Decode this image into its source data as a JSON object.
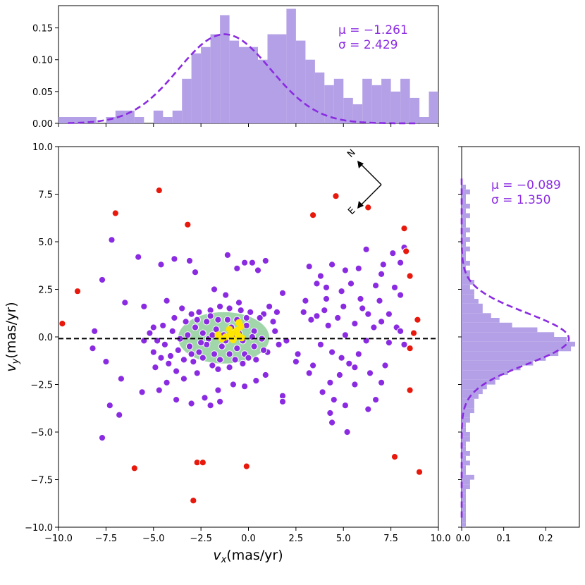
{
  "chart_data": [
    {
      "type": "scatter",
      "name": "proper-motion-scatter",
      "xlabel": "v_x(mas/yr)",
      "xlabel_main": "v",
      "xlabel_sub": "x",
      "xlabel_rest": "(mas/yr)",
      "ylabel": "v_y(mas/yr)",
      "ylabel_main": "v",
      "ylabel_sub": "y",
      "ylabel_rest": "(mas/yr)",
      "xlim": [
        -10,
        10
      ],
      "ylim": [
        -10,
        10
      ],
      "xticks": [
        "−10.0",
        "−7.5",
        "−5.0",
        "−2.5",
        "0.0",
        "2.5",
        "5.0",
        "7.5",
        "10.0"
      ],
      "xtick_values": [
        -10,
        -7.5,
        -5,
        -2.5,
        0,
        2.5,
        5,
        7.5,
        10
      ],
      "yticks": [
        "−10.0",
        "−7.5",
        "−5.0",
        "−2.5",
        "0.0",
        "2.5",
        "5.0",
        "7.5",
        "10.0"
      ],
      "ytick_values": [
        -10,
        -7.5,
        -5,
        -2.5,
        0,
        2.5,
        5,
        7.5,
        10
      ],
      "reference_line_y": -0.089,
      "ellipse": {
        "cx": -1.3,
        "cy": -0.05,
        "rx": 2.4,
        "ry": 1.35,
        "color": "#8fcf9a"
      },
      "compass": {
        "labels": [
          "N",
          "E"
        ]
      },
      "series": [
        {
          "name": "members",
          "color": "#8a2be2",
          "points": [
            [
              -7.2,
              5.1
            ],
            [
              -5.8,
              4.2
            ],
            [
              -4.6,
              3.8
            ],
            [
              -3.9,
              4.1
            ],
            [
              -3.1,
              4.0
            ],
            [
              -1.1,
              4.3
            ],
            [
              -0.6,
              3.6
            ],
            [
              -0.2,
              3.9
            ],
            [
              0.2,
              3.9
            ],
            [
              0.5,
              3.5
            ],
            [
              0.9,
              4.0
            ],
            [
              -7.7,
              3.0
            ],
            [
              -6.5,
              1.8
            ],
            [
              -5.5,
              1.6
            ],
            [
              -4.3,
              1.9
            ],
            [
              -2.8,
              3.4
            ],
            [
              -1.8,
              2.5
            ],
            [
              -1.2,
              2.2
            ],
            [
              -0.5,
              1.8
            ],
            [
              1.1,
              1.6
            ],
            [
              1.8,
              2.3
            ],
            [
              1.5,
              1.3
            ],
            [
              -8.1,
              0.3
            ],
            [
              -8.2,
              -0.6
            ],
            [
              -7.5,
              -1.3
            ],
            [
              -6.7,
              -2.2
            ],
            [
              -7.3,
              -3.6
            ],
            [
              -6.8,
              -4.1
            ],
            [
              -7.7,
              -5.3
            ],
            [
              -5.6,
              -2.9
            ],
            [
              -4.7,
              -2.8
            ],
            [
              -4.3,
              -2.4
            ],
            [
              -3.0,
              -3.5
            ],
            [
              -2.3,
              -3.2
            ],
            [
              -1.6,
              -2.8
            ],
            [
              -0.8,
              -2.5
            ],
            [
              -0.2,
              -2.6
            ],
            [
              0.4,
              -2.3
            ],
            [
              0.9,
              -2.0
            ],
            [
              1.8,
              -3.1
            ],
            [
              1.8,
              -3.4
            ],
            [
              2.5,
              -1.3
            ],
            [
              2.6,
              -0.9
            ],
            [
              -1.5,
              -3.4
            ],
            [
              -3.8,
              -3.3
            ],
            [
              -2.0,
              -3.6
            ],
            [
              -5.0,
              -0.8
            ],
            [
              -5.5,
              -0.2
            ],
            [
              -5.2,
              0.2
            ],
            [
              -5.0,
              0.5
            ],
            [
              -4.2,
              -1.4
            ],
            [
              -3.8,
              -1.8
            ],
            [
              -3.4,
              -2.2
            ],
            [
              -2.7,
              -1.9
            ],
            [
              -1.9,
              -1.5
            ],
            [
              -1.0,
              -1.6
            ],
            [
              -0.3,
              -1.4
            ],
            [
              0.4,
              -1.2
            ],
            [
              1.0,
              -0.8
            ],
            [
              1.6,
              -0.4
            ],
            [
              2.0,
              -0.2
            ],
            [
              1.4,
              0.3
            ],
            [
              1.3,
              0.8
            ],
            [
              0.8,
              1.2
            ],
            [
              -3.5,
              1.5
            ],
            [
              -3.0,
              1.2
            ],
            [
              -2.6,
              1.3
            ],
            [
              -2.0,
              1.4
            ],
            [
              -1.5,
              1.6
            ],
            [
              -1.0,
              1.5
            ],
            [
              -0.4,
              1.4
            ],
            [
              0.1,
              1.3
            ],
            [
              0.6,
              1.0
            ],
            [
              -4.5,
              0.6
            ],
            [
              -4.0,
              0.3
            ],
            [
              -3.6,
              -0.1
            ],
            [
              -3.2,
              0.1
            ],
            [
              -2.8,
              0.5
            ],
            [
              -2.4,
              0.2
            ],
            [
              -2.1,
              -0.1
            ],
            [
              -1.7,
              0.4
            ],
            [
              -1.3,
              0.1
            ],
            [
              -0.9,
              0.5
            ],
            [
              -0.5,
              0.2
            ],
            [
              -0.1,
              0.6
            ],
            [
              0.3,
              0.3
            ],
            [
              0.7,
              -0.1
            ],
            [
              -3.7,
              -0.7
            ],
            [
              -3.1,
              -0.5
            ],
            [
              -2.6,
              -0.8
            ],
            [
              -2.2,
              -0.4
            ],
            [
              -1.8,
              -0.9
            ],
            [
              -1.4,
              -0.5
            ],
            [
              -1.0,
              -0.9
            ],
            [
              -0.6,
              -0.6
            ],
            [
              -0.2,
              -0.9
            ],
            [
              0.3,
              -0.5
            ],
            [
              0.8,
              -0.7
            ],
            [
              -4.1,
              -1.0
            ],
            [
              -2.9,
              -1.3
            ],
            [
              -2.4,
              -1.1
            ],
            [
              -1.5,
              -1.2
            ],
            [
              -0.7,
              -1.2
            ],
            [
              0.0,
              -1.1
            ],
            [
              -3.3,
              0.8
            ],
            [
              -2.7,
              0.9
            ],
            [
              -2.2,
              0.8
            ],
            [
              -1.6,
              0.9
            ],
            [
              -1.1,
              0.9
            ],
            [
              -0.6,
              0.9
            ],
            [
              -0.1,
              1.0
            ],
            [
              -3.9,
              1.0
            ],
            [
              -4.4,
              -0.4
            ],
            [
              -4.8,
              -0.2
            ],
            [
              -1.9,
              0.1
            ],
            [
              -2.5,
              -0.3
            ],
            [
              -1.2,
              -0.2
            ],
            [
              -0.8,
              0.1
            ],
            [
              -0.3,
              -0.2
            ],
            [
              0.2,
              0.0
            ],
            [
              -3.4,
              -1.2
            ],
            [
              -2.0,
              1.1
            ],
            [
              -3.0,
              -0.9
            ],
            [
              -1.6,
              -1.7
            ],
            [
              -4.6,
              -1.1
            ],
            [
              -4.9,
              -1.6
            ],
            [
              2.9,
              1.3
            ],
            [
              3.3,
              0.9
            ],
            [
              3.6,
              1.1
            ],
            [
              4.0,
              1.4
            ],
            [
              4.2,
              0.6
            ],
            [
              3.8,
              -0.4
            ],
            [
              4.4,
              -0.8
            ],
            [
              4.9,
              -1.1
            ],
            [
              5.3,
              -1.4
            ],
            [
              5.8,
              -0.9
            ],
            [
              6.2,
              -0.2
            ],
            [
              6.6,
              0.5
            ],
            [
              7.0,
              0.8
            ],
            [
              7.4,
              -0.3
            ],
            [
              7.8,
              0.5
            ],
            [
              8.2,
              -0.4
            ],
            [
              8.0,
              0.3
            ],
            [
              5.6,
              0.7
            ],
            [
              5.1,
              0.1
            ],
            [
              3.4,
              -1.5
            ],
            [
              3.2,
              -1.9
            ],
            [
              4.3,
              -2.4
            ],
            [
              3.9,
              -2.9
            ],
            [
              4.5,
              -3.3
            ],
            [
              5.1,
              -3.6
            ],
            [
              5.6,
              -2.5
            ],
            [
              6.3,
              -3.8
            ],
            [
              6.7,
              -3.3
            ],
            [
              7.0,
              -2.4
            ],
            [
              6.4,
              -1.9
            ],
            [
              7.2,
              -1.5
            ],
            [
              4.8,
              -2.0
            ],
            [
              4.3,
              -4.0
            ],
            [
              4.4,
              -4.5
            ],
            [
              5.2,
              -5.0
            ],
            [
              5.6,
              -1.6
            ],
            [
              3.0,
              1.9
            ],
            [
              3.6,
              2.8
            ],
            [
              4.1,
              2.6
            ],
            [
              4.9,
              2.4
            ],
            [
              5.4,
              2.8
            ],
            [
              5.9,
              2.0
            ],
            [
              6.3,
              1.2
            ],
            [
              6.7,
              2.7
            ],
            [
              7.0,
              3.3
            ],
            [
              7.7,
              2.6
            ],
            [
              8.0,
              3.9
            ],
            [
              8.2,
              4.7
            ],
            [
              3.2,
              3.7
            ],
            [
              3.8,
              3.2
            ],
            [
              4.4,
              3.8
            ],
            [
              5.1,
              3.5
            ],
            [
              5.8,
              3.6
            ],
            [
              6.2,
              4.6
            ],
            [
              7.1,
              3.8
            ],
            [
              7.6,
              4.4
            ],
            [
              4.1,
              2.0
            ],
            [
              6.0,
              1.5
            ],
            [
              5.0,
              1.6
            ],
            [
              7.4,
              1.2
            ],
            [
              8.0,
              2.2
            ],
            [
              6.9,
              1.9
            ],
            [
              4.7,
              1.0
            ]
          ]
        },
        {
          "name": "outliers",
          "color": "#e8180c",
          "points": [
            [
              -4.7,
              7.7
            ],
            [
              -7.0,
              6.5
            ],
            [
              -3.2,
              5.9
            ],
            [
              -9.0,
              2.4
            ],
            [
              -9.8,
              0.7
            ],
            [
              3.4,
              6.4
            ],
            [
              4.6,
              7.4
            ],
            [
              6.3,
              6.8
            ],
            [
              8.2,
              5.7
            ],
            [
              8.3,
              4.5
            ],
            [
              8.5,
              3.2
            ],
            [
              8.9,
              0.9
            ],
            [
              8.7,
              0.2
            ],
            [
              8.5,
              -0.6
            ],
            [
              8.5,
              -2.8
            ],
            [
              7.7,
              -6.3
            ],
            [
              9.0,
              -7.1
            ],
            [
              -6.0,
              -6.9
            ],
            [
              -2.7,
              -6.6
            ],
            [
              -2.4,
              -6.6
            ],
            [
              -0.1,
              -6.8
            ],
            [
              -2.9,
              -8.6
            ]
          ]
        },
        {
          "name": "cluster-core",
          "color": "#ffe600",
          "points": [
            [
              -1.6,
              0.1
            ],
            [
              -1.2,
              0.0
            ],
            [
              -0.9,
              0.15
            ],
            [
              -0.6,
              0.35
            ],
            [
              -0.4,
              0.55
            ],
            [
              -0.55,
              0.1
            ],
            [
              -0.35,
              -0.05
            ],
            [
              -1.4,
              -0.1
            ],
            [
              -0.8,
              -0.15
            ],
            [
              -1.0,
              0.4
            ],
            [
              -0.5,
              0.75
            ]
          ]
        }
      ]
    },
    {
      "type": "bar",
      "name": "vx-histogram",
      "orientation": "vertical",
      "xlim": [
        -10,
        10
      ],
      "ylim": [
        0,
        0.185
      ],
      "yticks": [
        "0.00",
        "0.05",
        "0.10",
        "0.15"
      ],
      "ytick_values": [
        0,
        0.05,
        0.1,
        0.15
      ],
      "bin_start": -10,
      "bin_width": 0.5,
      "values": [
        0.01,
        0.01,
        0.01,
        0.01,
        0,
        0.01,
        0.02,
        0.02,
        0.01,
        0,
        0.02,
        0.01,
        0.02,
        0.07,
        0.11,
        0.12,
        0.14,
        0.17,
        0.13,
        0.12,
        0.12,
        0.1,
        0.14,
        0.14,
        0.18,
        0.13,
        0.1,
        0.08,
        0.06,
        0.07,
        0.04,
        0.03,
        0.07,
        0.06,
        0.07,
        0.05,
        0.07,
        0.04,
        0.01,
        0.05
      ],
      "fit": {
        "mu": -1.261,
        "sigma": 2.429,
        "peak": 0.14
      },
      "annotation": {
        "mu": "μ = −1.261",
        "sigma": "σ = 2.429"
      },
      "color": "#b4a0e6",
      "fit_color": "#8a2be2"
    },
    {
      "type": "bar",
      "name": "vy-histogram",
      "orientation": "horizontal",
      "ylim": [
        -10,
        10
      ],
      "xlim": [
        0,
        0.28
      ],
      "xticks": [
        "0.0",
        "0.1",
        "0.2"
      ],
      "xtick_values": [
        0,
        0.1,
        0.2
      ],
      "bin_start": -10,
      "bin_width": 0.25,
      "values": [
        0.01,
        0.01,
        0.01,
        0.01,
        0.01,
        0.01,
        0.01,
        0.01,
        0.02,
        0.02,
        0.03,
        0.01,
        0.01,
        0.02,
        0.01,
        0.02,
        0.01,
        0.01,
        0.02,
        0.02,
        0.01,
        0.01,
        0.02,
        0.02,
        0.03,
        0.03,
        0.03,
        0.04,
        0.05,
        0.06,
        0.08,
        0.09,
        0.11,
        0.14,
        0.17,
        0.2,
        0.23,
        0.26,
        0.27,
        0.25,
        0.22,
        0.18,
        0.12,
        0.09,
        0.07,
        0.05,
        0.05,
        0.04,
        0.03,
        0.03,
        0.02,
        0.03,
        0.02,
        0.02,
        0.01,
        0.02,
        0.01,
        0.01,
        0.02,
        0.01,
        0.02,
        0.01,
        0.02,
        0.01,
        0.01,
        0.02,
        0.01,
        0.02,
        0.01,
        0.01,
        0.02,
        0.01,
        0,
        0,
        0,
        0,
        0,
        0,
        0,
        0
      ],
      "fit": {
        "mu": -0.089,
        "sigma": 1.35,
        "peak": 0.255
      },
      "annotation": {
        "mu": "μ = −0.089",
        "sigma": "σ = 1.350"
      },
      "color": "#b4a0e6",
      "fit_color": "#8a2be2"
    }
  ]
}
